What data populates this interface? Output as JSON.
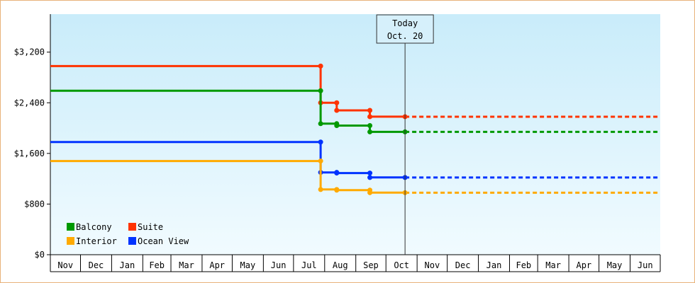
{
  "chart_data": {
    "type": "line",
    "title": "",
    "xlabel": "",
    "ylabel": "",
    "ylim": [
      0,
      3800
    ],
    "y_ticks": [
      0,
      800,
      1600,
      2400,
      3200
    ],
    "y_tick_labels": [
      "$0",
      "$800",
      "$1,600",
      "$2,400",
      "$3,200"
    ],
    "x_tick_labels": [
      "Nov",
      "Dec",
      "Jan",
      "Feb",
      "Mar",
      "Apr",
      "May",
      "Jun",
      "Jul",
      "Aug",
      "Sep",
      "Oct",
      "Nov",
      "Dec",
      "Jan",
      "Feb",
      "Mar",
      "Apr",
      "May",
      "Jun"
    ],
    "today": {
      "label": "Today",
      "date_label": "Oct. 20"
    },
    "legend_position": "bottom-left",
    "grid": false,
    "series": [
      {
        "name": "Suite",
        "color": "#ff3300",
        "points": [
          [
            "Nov 1",
            2980
          ],
          [
            "Jul 28",
            2980
          ],
          [
            "Jul 28",
            2400
          ],
          [
            "Aug 13",
            2400
          ],
          [
            "Aug 13",
            2280
          ],
          [
            "Sep 15",
            2280
          ],
          [
            "Sep 15",
            2180
          ],
          [
            "Oct 20",
            2180
          ]
        ],
        "projected": 2180
      },
      {
        "name": "Balcony",
        "color": "#009900",
        "points": [
          [
            "Nov 1",
            2590
          ],
          [
            "Jul 28",
            2590
          ],
          [
            "Jul 28",
            2070
          ],
          [
            "Aug 13",
            2070
          ],
          [
            "Aug 13",
            2040
          ],
          [
            "Sep 15",
            2040
          ],
          [
            "Sep 15",
            1940
          ],
          [
            "Oct 20",
            1940
          ]
        ],
        "projected": 1940
      },
      {
        "name": "Ocean View",
        "color": "#0033ff",
        "points": [
          [
            "Nov 1",
            1780
          ],
          [
            "Jul 28",
            1780
          ],
          [
            "Jul 28",
            1300
          ],
          [
            "Aug 13",
            1300
          ],
          [
            "Aug 13",
            1290
          ],
          [
            "Sep 15",
            1290
          ],
          [
            "Sep 15",
            1220
          ],
          [
            "Oct 20",
            1220
          ]
        ],
        "projected": 1220
      },
      {
        "name": "Interior",
        "color": "#ffaa00",
        "points": [
          [
            "Nov 1",
            1480
          ],
          [
            "Jul 28",
            1480
          ],
          [
            "Jul 28",
            1030
          ],
          [
            "Aug 13",
            1030
          ],
          [
            "Aug 13",
            1020
          ],
          [
            "Sep 15",
            1020
          ],
          [
            "Sep 15",
            980
          ],
          [
            "Oct 20",
            980
          ]
        ],
        "projected": 980
      }
    ]
  }
}
